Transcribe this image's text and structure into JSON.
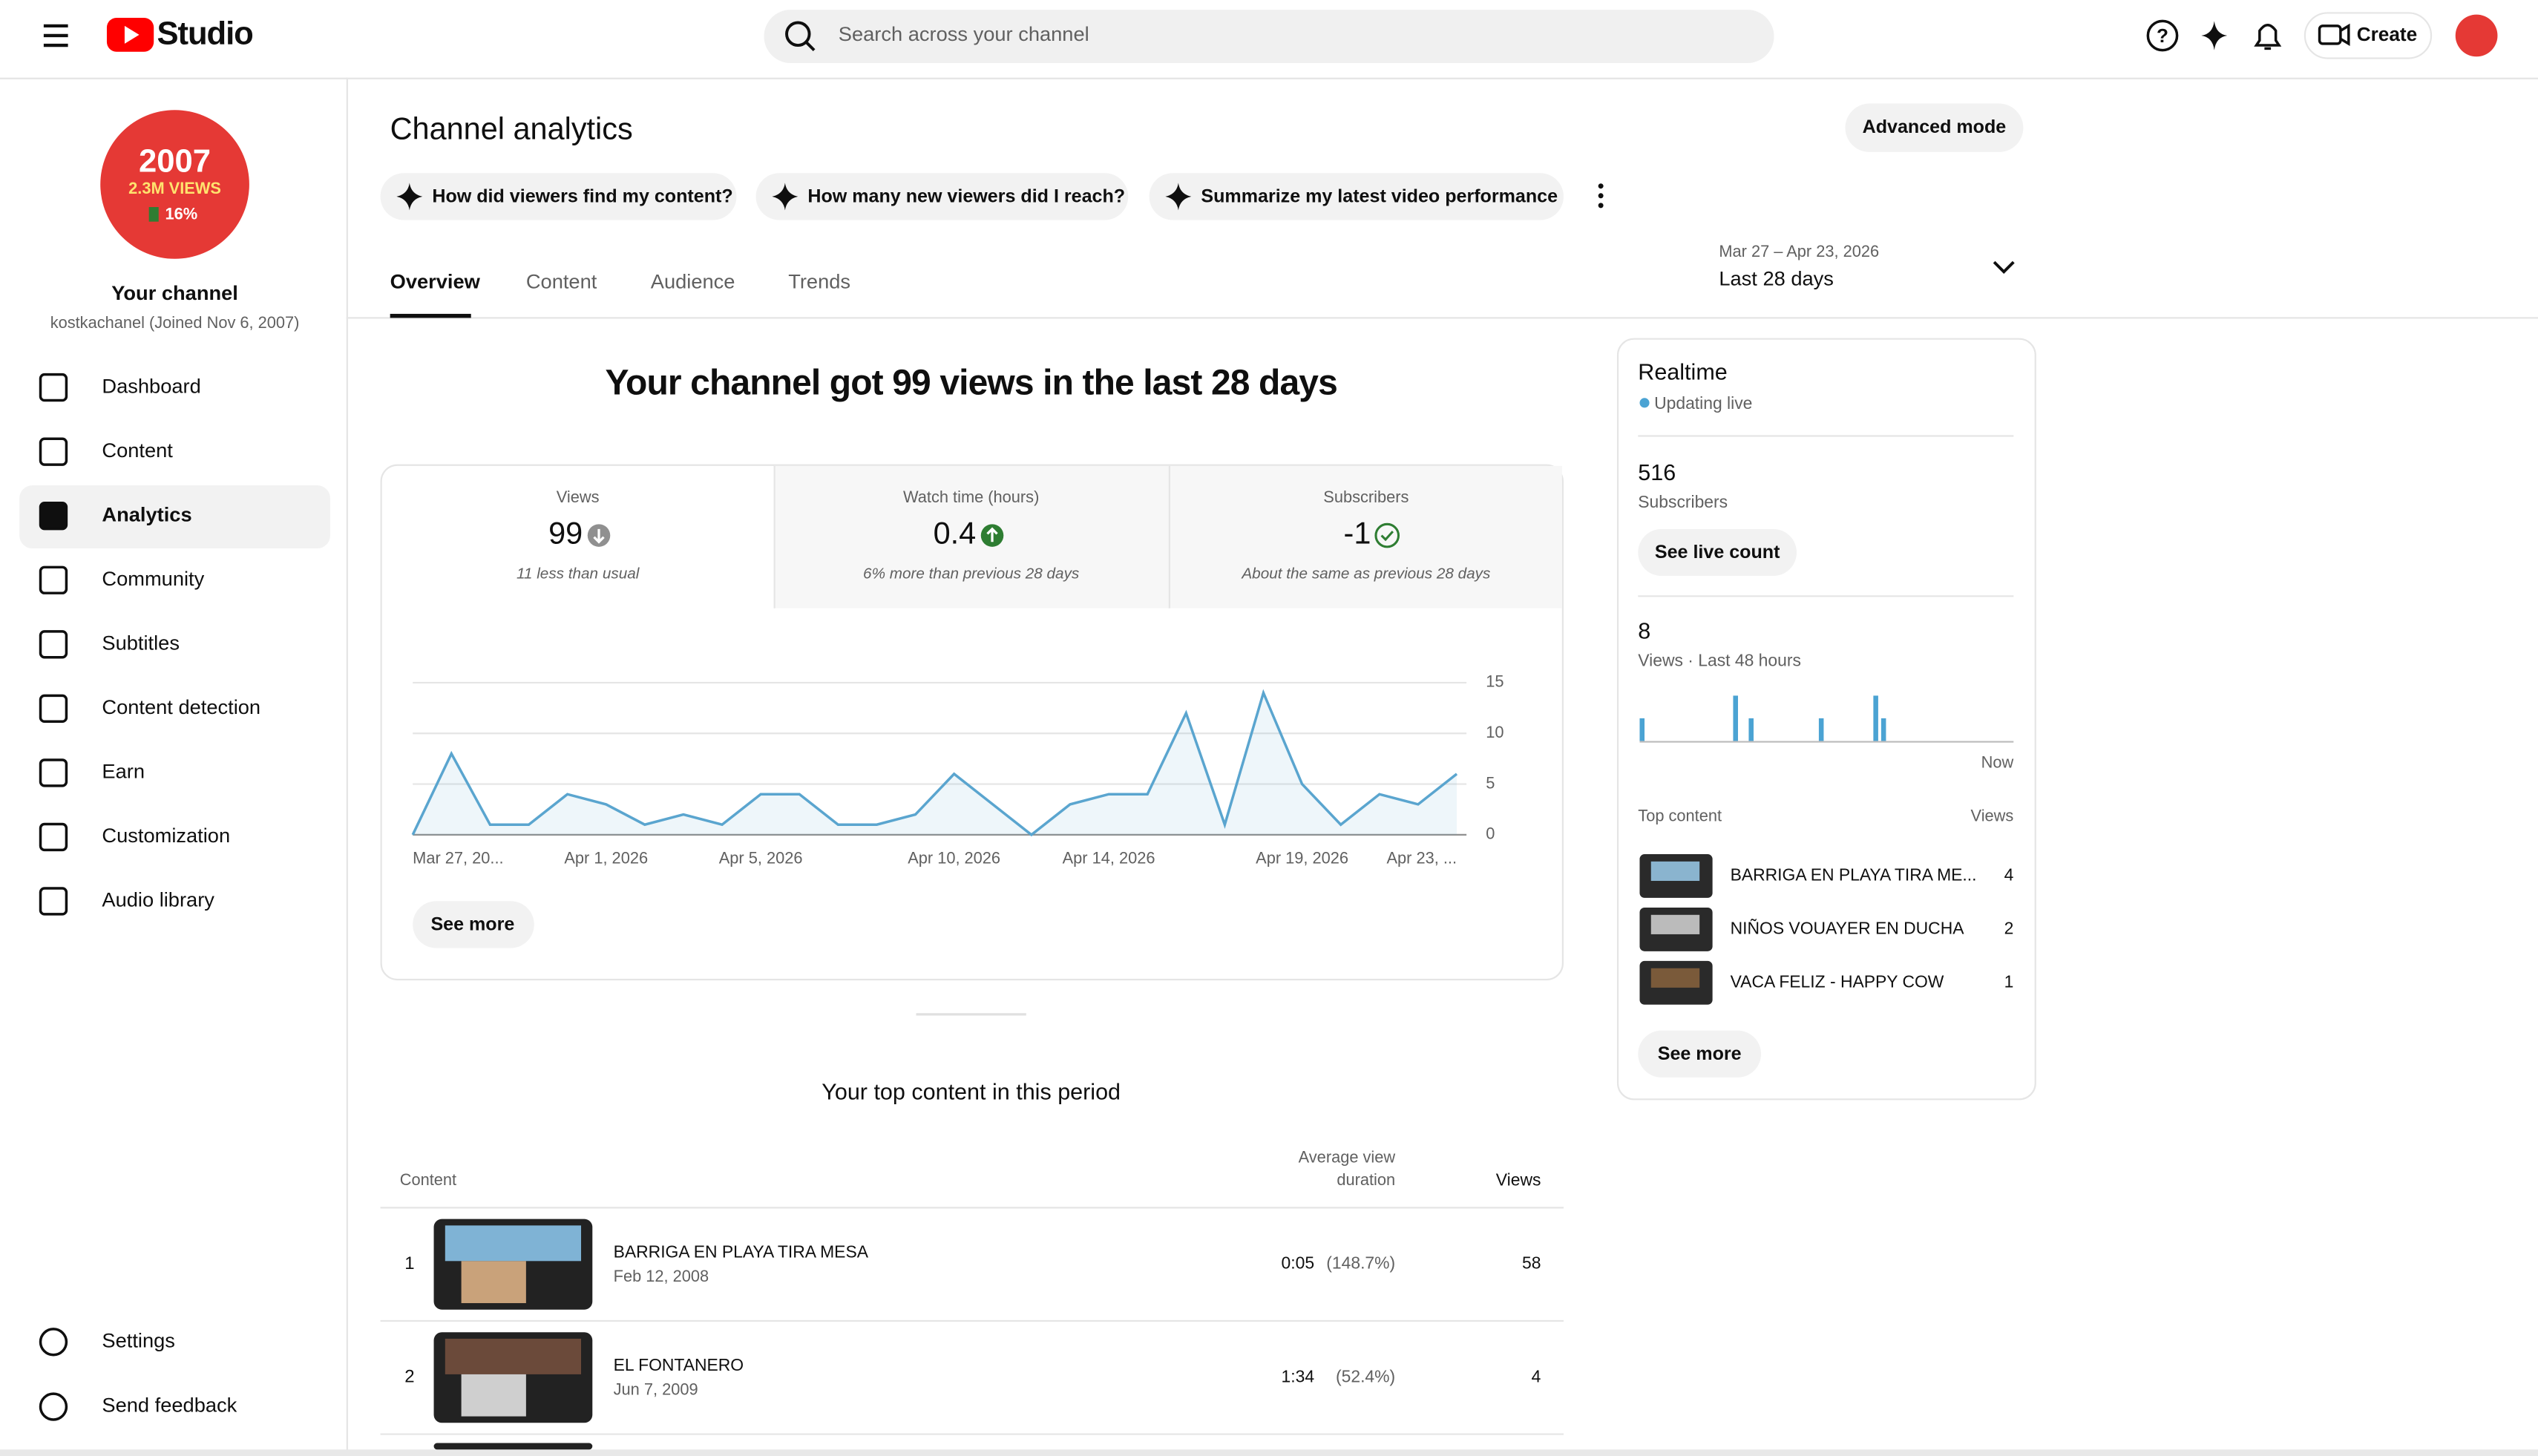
{
  "header": {
    "logo": "Studio",
    "search_placeholder": "Search across your channel",
    "create": "Create"
  },
  "sidebar": {
    "avatar": [
      "2007",
      "2.3M VIEWS",
      "16%"
    ],
    "channel_title": "Your channel",
    "channel_handle": "kostkachanel (Joined Nov 6, 2007)",
    "nav": [
      "Dashboard",
      "Content",
      "Analytics",
      "Community",
      "Subtitles",
      "Content detection",
      "Earn",
      "Customization",
      "Audio library"
    ],
    "footer_nav": [
      "Settings",
      "Send feedback"
    ]
  },
  "main": {
    "title": "Channel analytics",
    "advanced_mode": "Advanced mode",
    "prompts": [
      "How did viewers find my content?",
      "How many new viewers did I reach?",
      "Summarize my latest video performance"
    ],
    "tabs": [
      "Overview",
      "Content",
      "Audience",
      "Trends"
    ],
    "date_range": "Mar 27 – Apr 23, 2026",
    "period": "Last 28 days",
    "headline": "Your channel got 99 views in the last 28 days",
    "metrics": [
      {
        "label": "Views",
        "value": 99,
        "note": "11 less than usual"
      },
      {
        "label": "Watch time (hours)",
        "value": 0.4,
        "note": "6% more than previous 28 days"
      },
      {
        "label": "Subscribers",
        "value": -1,
        "note": "About the same as previous 28 days"
      }
    ],
    "chart": {
      "type": "line",
      "color": "#5aa5cf",
      "categories": [
        "Mar 27, 20...",
        null,
        null,
        null,
        null,
        "Apr 1, 2026",
        null,
        null,
        null,
        "Apr 5, 2026",
        null,
        null,
        null,
        null,
        "Apr 10, 2026",
        null,
        null,
        null,
        "Apr 14, 2026",
        null,
        null,
        null,
        null,
        "Apr 19, 2026",
        null,
        null,
        null,
        "Apr 23, ..."
      ],
      "values": [
        0,
        8,
        1,
        1,
        4,
        3,
        1,
        2,
        1,
        4,
        4,
        1,
        1,
        2,
        6,
        3,
        0,
        3,
        4,
        4,
        12,
        1,
        14,
        5,
        1,
        4,
        3,
        6
      ],
      "ylim": [
        0,
        15
      ],
      "yticks": [
        0,
        5,
        10,
        15
      ],
      "grid": true
    },
    "see_more": "See more",
    "top_content": {
      "title": "Your top content in this period",
      "content_header": "Content",
      "duration_header": [
        "Average view",
        "duration"
      ],
      "views_header": "Views",
      "rows": [
        {
          "rank": 1,
          "title": "BARRIGA EN PLAYA TIRA MESA",
          "date": "Feb 12, 2008",
          "duration": "0:05",
          "duration_pct": "(148.7%)",
          "views": 58
        },
        {
          "rank": 2,
          "title": "EL FONTANERO",
          "date": "Jun 7, 2009",
          "duration": "1:34",
          "duration_pct": "(52.4%)",
          "views": 4
        }
      ]
    }
  },
  "realtime": {
    "title": "Realtime",
    "status": "Updating live",
    "subscribers": 516,
    "subscribers_label": "Subscribers",
    "see_live_count": "See live count",
    "views": 8,
    "views_label": "Views · Last 48 hours",
    "chart": {
      "type": "bar",
      "color": "#4ba3d3",
      "values": [
        1,
        0,
        0,
        0,
        0,
        0,
        0,
        0,
        0,
        0,
        0,
        0,
        2,
        0,
        1,
        0,
        0,
        0,
        0,
        0,
        0,
        0,
        0,
        1,
        0,
        0,
        0,
        0,
        0,
        0,
        2,
        1,
        0,
        0,
        0,
        0,
        0,
        0,
        0,
        0,
        0,
        0,
        0,
        0,
        0,
        0,
        0,
        0
      ]
    },
    "now": "Now",
    "top_content_label": "Top content",
    "views_header": "Views",
    "top": [
      {
        "title": "BARRIGA EN PLAYA TIRA ME...",
        "views": 4
      },
      {
        "title": "NIÑOS VOUAYER EN DUCHA",
        "views": 2
      },
      {
        "title": "VACA FELIZ - HAPPY COW",
        "views": 1
      }
    ],
    "see_more": "See more"
  }
}
